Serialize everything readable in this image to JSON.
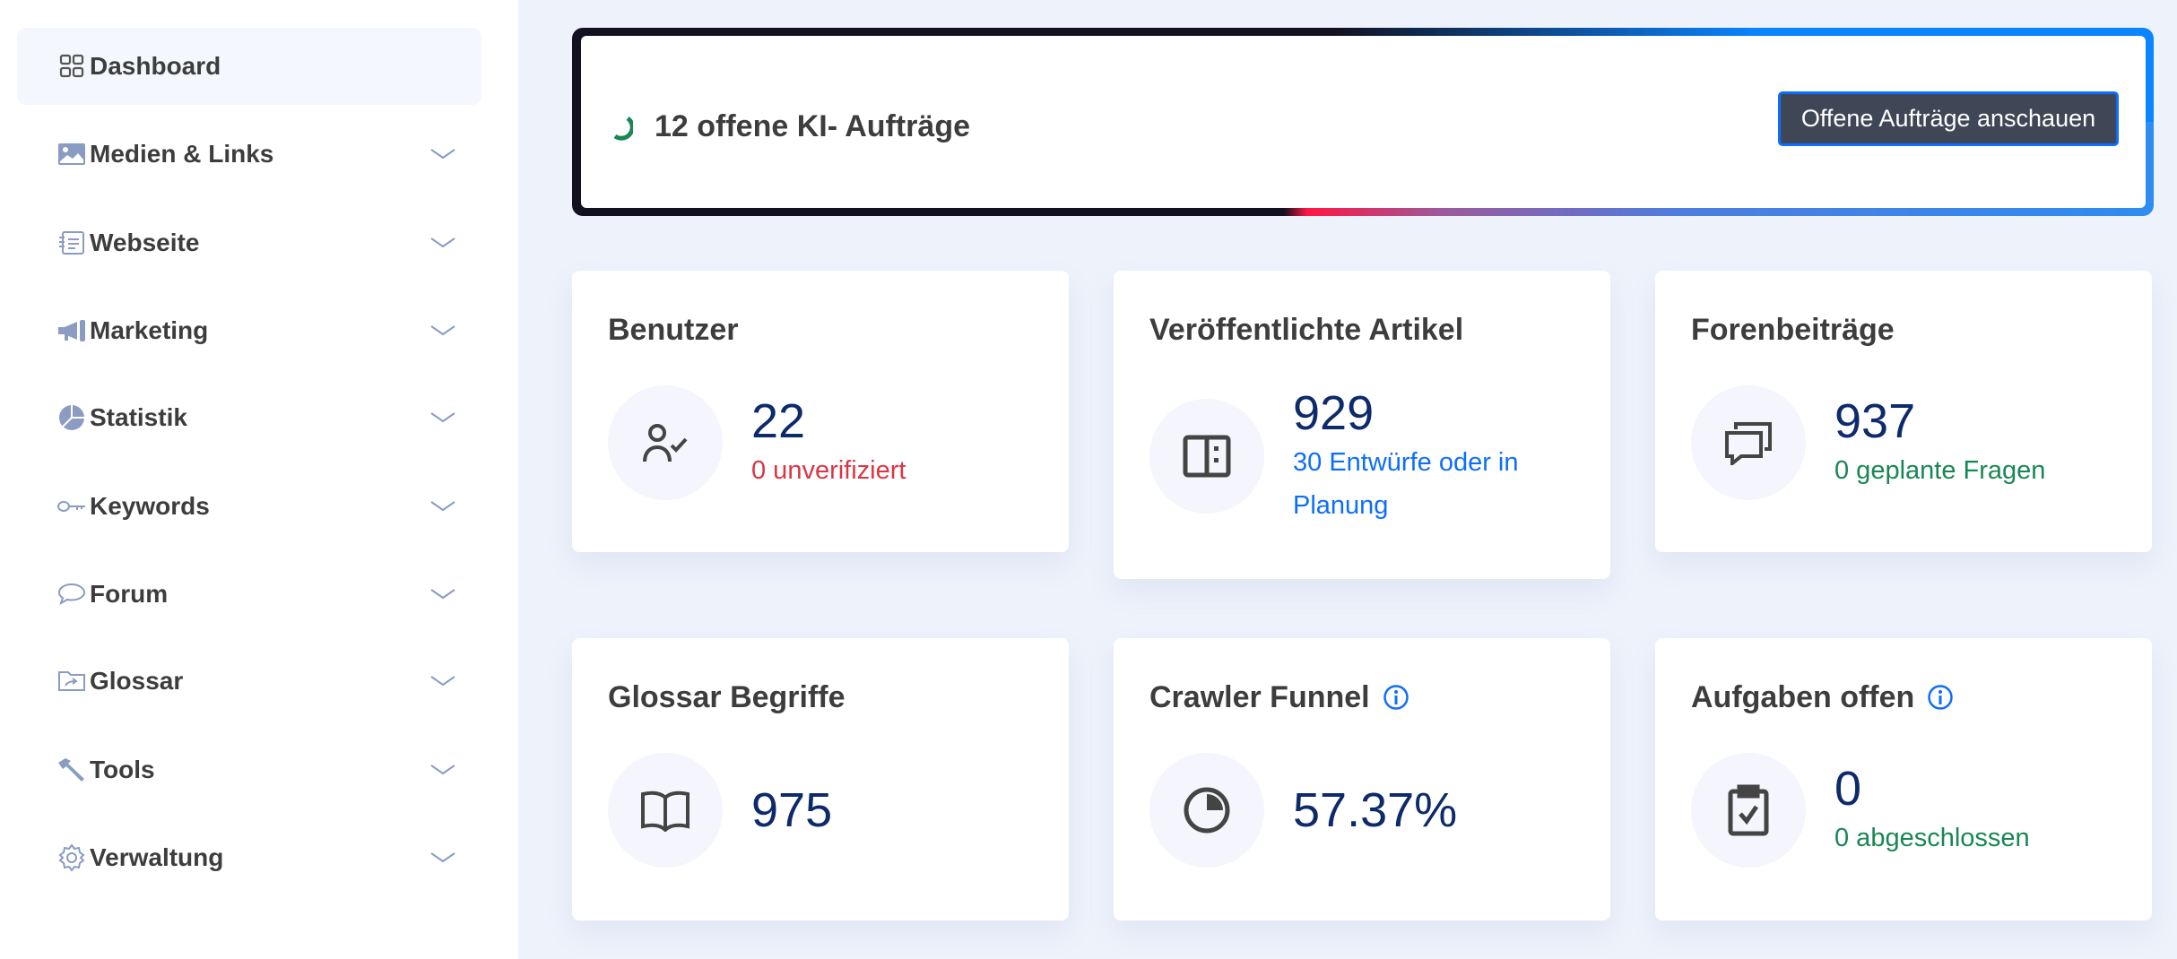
{
  "sidebar": {
    "items": [
      {
        "label": "Dashboard",
        "icon": "grid-icon",
        "active": true
      },
      {
        "label": "Medien & Links",
        "icon": "image-icon"
      },
      {
        "label": "Webseite",
        "icon": "document-icon"
      },
      {
        "label": "Marketing",
        "icon": "megaphone-icon"
      },
      {
        "label": "Statistik",
        "icon": "pie-chart-icon"
      },
      {
        "label": "Keywords",
        "icon": "key-icon"
      },
      {
        "label": "Forum",
        "icon": "chat-icon"
      },
      {
        "label": "Glossar",
        "icon": "folder-share-icon"
      },
      {
        "label": "Tools",
        "icon": "hammer-icon"
      },
      {
        "label": "Verwaltung",
        "icon": "gear-icon"
      }
    ]
  },
  "banner": {
    "text": "12 offene KI- Aufträge",
    "button": "Offene Aufträge anschauen"
  },
  "cards": [
    {
      "title": "Benutzer",
      "value": "22",
      "sub": "0 unverifiziert",
      "icon": "user-check-icon"
    },
    {
      "title": "Veröffentlichte Artikel",
      "value": "929",
      "sub": "30 Entwürfe oder in Planung",
      "icon": "layout-icon"
    },
    {
      "title": "Forenbeiträge",
      "value": "937",
      "sub": "0 geplante Fragen",
      "icon": "chat-squares-icon"
    },
    {
      "title": "Glossar Begriffe",
      "value": "975",
      "icon": "book-icon"
    },
    {
      "title": "Crawler Funnel",
      "value": "57.37%",
      "icon": "pie-icon",
      "info": true
    },
    {
      "title": "Aufgaben offen",
      "value": "0",
      "sub": "0 abgeschlossen",
      "icon": "clipboard-check-icon",
      "info": true
    }
  ],
  "colors": {
    "value": "#0d2a6b",
    "danger": "#dc3545",
    "primary": "#0d6efd",
    "success": "#198754",
    "nav_icon": "#8a9cc2"
  }
}
